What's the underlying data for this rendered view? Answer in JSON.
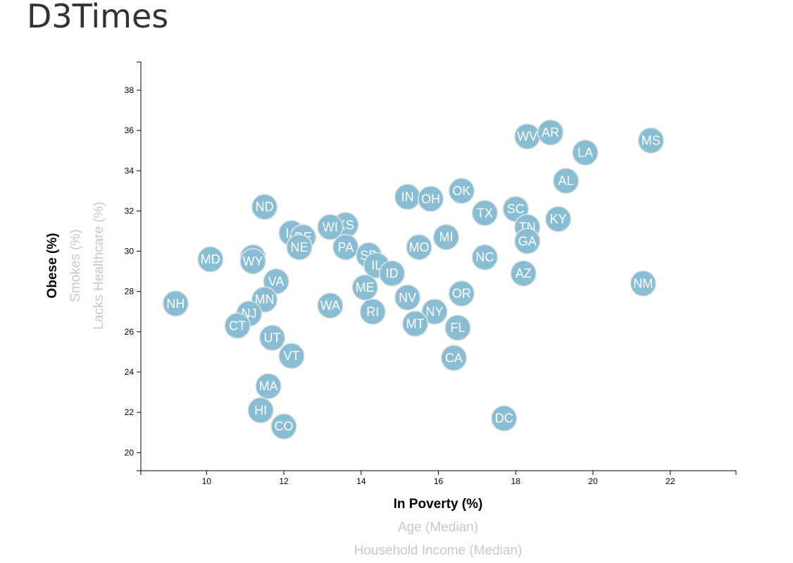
{
  "page": {
    "title": "D3Times"
  },
  "colors": {
    "marker_fill": "#89bdd3",
    "marker_stroke": "#e3e3e3",
    "label": "#ffffff",
    "axis": "#000000",
    "inactive_label": "#c8c8c8"
  },
  "chart_data": {
    "type": "scatter",
    "title": "",
    "xlim": [
      8.3,
      23.7
    ],
    "ylim": [
      19.1,
      39.4
    ],
    "x_ticks": [
      10,
      12,
      14,
      16,
      18,
      20,
      22
    ],
    "y_ticks": [
      20,
      22,
      24,
      26,
      28,
      30,
      32,
      34,
      36,
      38
    ],
    "x_axis_labels": [
      {
        "text": "In Poverty (%)",
        "active": true
      },
      {
        "text": "Age (Median)",
        "active": false
      },
      {
        "text": "Household Income (Median)",
        "active": false
      }
    ],
    "y_axis_labels": [
      {
        "text": "Obese (%)",
        "active": true
      },
      {
        "text": "Smokes (%)",
        "active": false
      },
      {
        "text": "Lacks Healthcare (%)",
        "active": false
      }
    ],
    "points": [
      {
        "label": "WV",
        "x": 18.3,
        "y": 35.7
      },
      {
        "label": "AR",
        "x": 18.9,
        "y": 35.9
      },
      {
        "label": "MS",
        "x": 21.5,
        "y": 35.5
      },
      {
        "label": "LA",
        "x": 19.8,
        "y": 34.9
      },
      {
        "label": "AL",
        "x": 19.3,
        "y": 33.5
      },
      {
        "label": "IN",
        "x": 15.2,
        "y": 32.7
      },
      {
        "label": "OH",
        "x": 15.8,
        "y": 32.6
      },
      {
        "label": "OK",
        "x": 16.6,
        "y": 33.0
      },
      {
        "label": "ND",
        "x": 11.5,
        "y": 32.2
      },
      {
        "label": "TX",
        "x": 17.2,
        "y": 31.9
      },
      {
        "label": "SC",
        "x": 18.0,
        "y": 32.1
      },
      {
        "label": "KY",
        "x": 19.1,
        "y": 31.6
      },
      {
        "label": "TN",
        "x": 18.3,
        "y": 31.2
      },
      {
        "label": "KS",
        "x": 13.6,
        "y": 31.3
      },
      {
        "label": "WI",
        "x": 13.2,
        "y": 31.2
      },
      {
        "label": "IA",
        "x": 12.2,
        "y": 30.9
      },
      {
        "label": "DE",
        "x": 12.5,
        "y": 30.7
      },
      {
        "label": "MI",
        "x": 16.2,
        "y": 30.7
      },
      {
        "label": "GA",
        "x": 18.3,
        "y": 30.5
      },
      {
        "label": "NE",
        "x": 12.4,
        "y": 30.2
      },
      {
        "label": "PA",
        "x": 13.6,
        "y": 30.2
      },
      {
        "label": "MO",
        "x": 15.5,
        "y": 30.2
      },
      {
        "label": "SD",
        "x": 14.2,
        "y": 29.8
      },
      {
        "label": "NC",
        "x": 17.2,
        "y": 29.7
      },
      {
        "label": "MD",
        "x": 10.1,
        "y": 29.6
      },
      {
        "label": "AK",
        "x": 11.2,
        "y": 29.7
      },
      {
        "label": "WY",
        "x": 11.2,
        "y": 29.5
      },
      {
        "label": "IL",
        "x": 14.4,
        "y": 29.3
      },
      {
        "label": "ID",
        "x": 14.8,
        "y": 28.9
      },
      {
        "label": "AZ",
        "x": 18.2,
        "y": 28.9
      },
      {
        "label": "VA",
        "x": 11.8,
        "y": 28.5
      },
      {
        "label": "NM",
        "x": 21.3,
        "y": 28.4
      },
      {
        "label": "ME",
        "x": 14.1,
        "y": 28.2
      },
      {
        "label": "OR",
        "x": 16.6,
        "y": 27.9
      },
      {
        "label": "MN",
        "x": 11.5,
        "y": 27.6
      },
      {
        "label": "NV",
        "x": 15.2,
        "y": 27.7
      },
      {
        "label": "NH",
        "x": 9.2,
        "y": 27.4
      },
      {
        "label": "WA",
        "x": 13.2,
        "y": 27.3
      },
      {
        "label": "RI",
        "x": 14.3,
        "y": 27.0
      },
      {
        "label": "NY",
        "x": 15.9,
        "y": 27.0
      },
      {
        "label": "NJ",
        "x": 11.1,
        "y": 26.9
      },
      {
        "label": "MT",
        "x": 15.4,
        "y": 26.4
      },
      {
        "label": "CT",
        "x": 10.8,
        "y": 26.3
      },
      {
        "label": "FL",
        "x": 16.5,
        "y": 26.2
      },
      {
        "label": "UT",
        "x": 11.7,
        "y": 25.7
      },
      {
        "label": "VT",
        "x": 12.2,
        "y": 24.8
      },
      {
        "label": "CA",
        "x": 16.4,
        "y": 24.7
      },
      {
        "label": "MA",
        "x": 11.6,
        "y": 23.3
      },
      {
        "label": "HI",
        "x": 11.4,
        "y": 22.1
      },
      {
        "label": "DC",
        "x": 17.7,
        "y": 21.7
      },
      {
        "label": "CO",
        "x": 12.0,
        "y": 21.3
      }
    ]
  }
}
